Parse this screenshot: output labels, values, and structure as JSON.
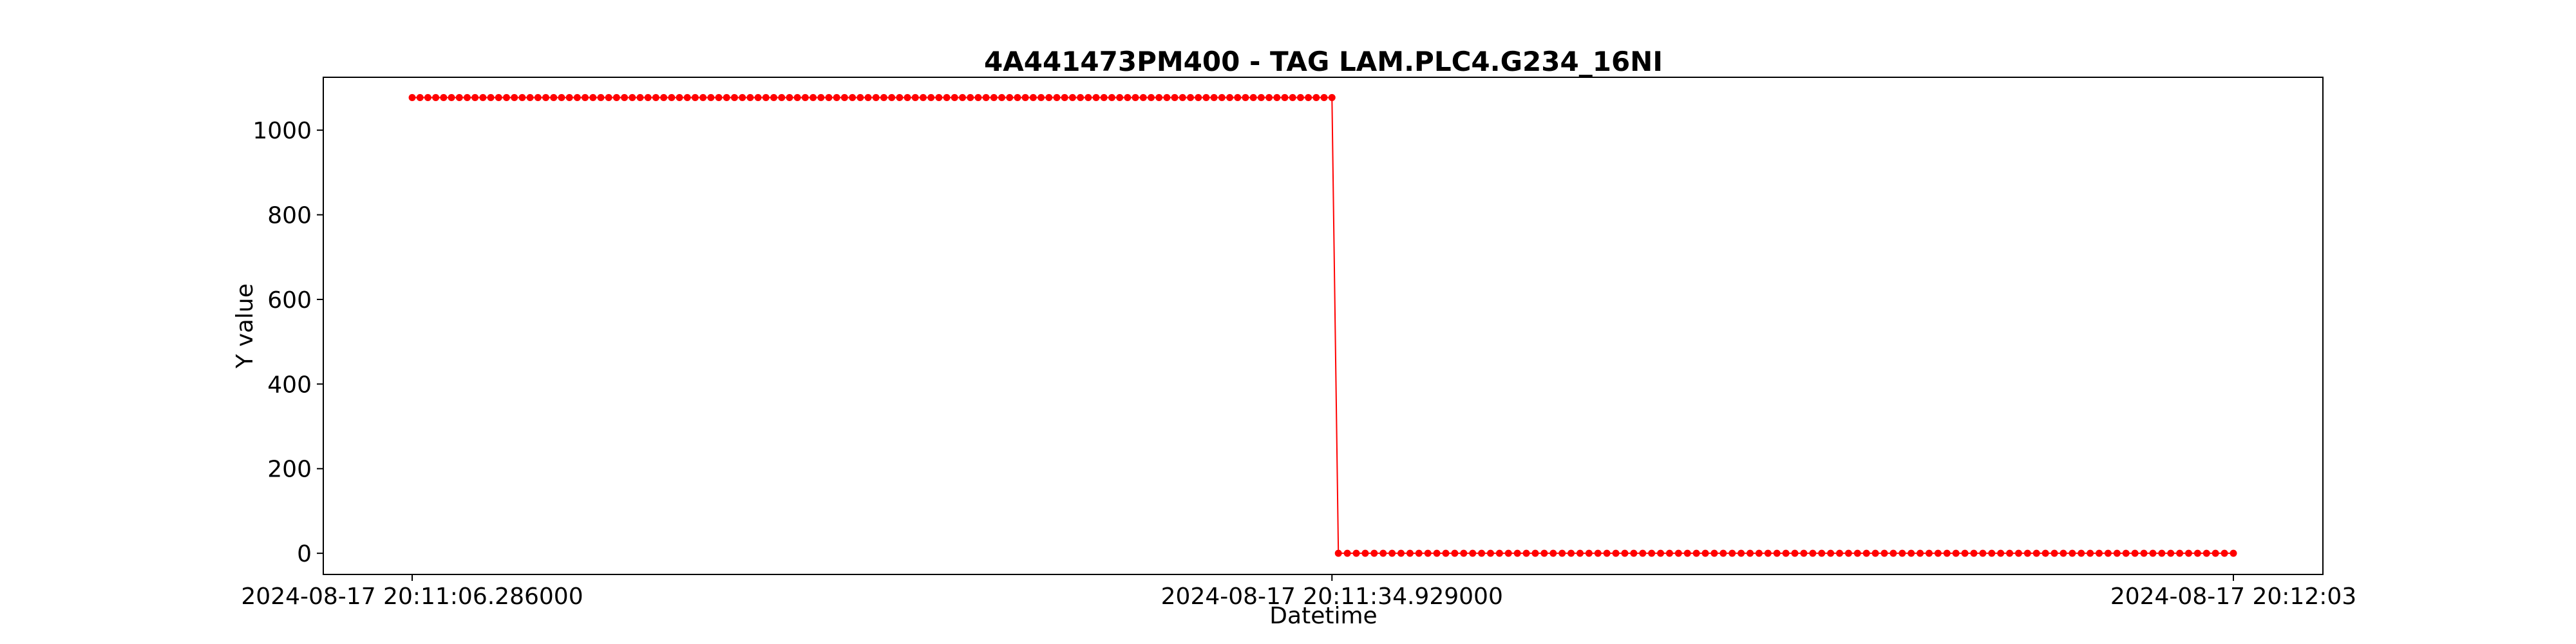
{
  "chart_data": {
    "type": "line",
    "title": "4A441473PM400 - TAG LAM.PLC4.G234_16NI",
    "xlabel": "Datetime",
    "ylabel": "Y value",
    "x_start": "2024-08-17 20:11:06.286000",
    "x_end": "2024-08-17 20:12:03",
    "ylim": [
      -50,
      1125
    ],
    "yticks": [
      0,
      200,
      400,
      600,
      800,
      1000
    ],
    "xticks": [
      {
        "value": "2024-08-17 20:11:06.286000",
        "label": "2024-08-17 20:11:06.286000"
      },
      {
        "value": "2024-08-17 20:11:34.929000",
        "label": "2024-08-17 20:11:34.929000"
      },
      {
        "value": "2024-08-17 20:12:03",
        "label": "2024-08-17 20:12:03"
      }
    ],
    "grid": false,
    "legend": "none",
    "color": "#ff0000",
    "series": [
      {
        "segments": [
          {
            "start": "2024-08-17 20:11:06.286000",
            "end": "2024-08-17 20:11:34.929000",
            "value": 1077,
            "count": 118
          },
          {
            "start": "2024-08-17 20:11:35.129000",
            "end": "2024-08-17 20:12:03",
            "value": 0,
            "count": 101
          }
        ]
      }
    ]
  }
}
